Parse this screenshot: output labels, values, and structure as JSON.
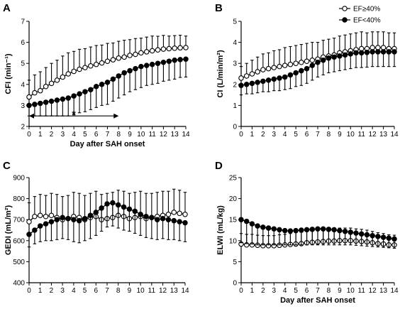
{
  "legend": [
    {
      "label": "EF≥40%",
      "marker": "open-circle"
    },
    {
      "label": "EF<40%",
      "marker": "filled-circle"
    }
  ],
  "colors": {
    "ink": "#000000",
    "open_fill": "#ffffff"
  },
  "chart_data": [
    {
      "panel": "A",
      "type": "line",
      "ylabel": "CFI (min⁻¹)",
      "xlabel": "Day after SAH onset",
      "ylim": [
        2,
        7
      ],
      "yticks": [
        2,
        3,
        4,
        5,
        6,
        7
      ],
      "xlim": [
        0,
        14
      ],
      "xticks": [
        0,
        1,
        2,
        3,
        4,
        5,
        6,
        7,
        8,
        9,
        10,
        11,
        12,
        13,
        14
      ],
      "grid": false,
      "series": [
        {
          "name": "EF≥40%",
          "marker": "open-circle",
          "x": [
            0,
            0.5,
            1,
            1.5,
            2,
            2.5,
            3,
            3.5,
            4,
            4.5,
            5,
            5.5,
            6,
            6.5,
            7,
            7.5,
            8,
            8.5,
            9,
            9.5,
            10,
            10.5,
            11,
            11.5,
            12,
            12.5,
            13,
            13.5,
            14
          ],
          "y": [
            3.4,
            3.6,
            3.7,
            3.9,
            4.05,
            4.2,
            4.35,
            4.5,
            4.62,
            4.72,
            4.8,
            4.88,
            4.95,
            5.02,
            5.1,
            5.17,
            5.25,
            5.3,
            5.38,
            5.43,
            5.5,
            5.55,
            5.6,
            5.64,
            5.68,
            5.7,
            5.72,
            5.74,
            5.75
          ],
          "err": [
            0.8,
            0.85,
            0.9,
            0.9,
            0.95,
            0.95,
            1.0,
            1.0,
            0.95,
            0.95,
            0.9,
            0.9,
            0.9,
            0.85,
            0.85,
            0.8,
            0.8,
            0.8,
            0.75,
            0.75,
            0.7,
            0.7,
            0.7,
            0.65,
            0.65,
            0.6,
            0.6,
            0.6,
            0.55
          ]
        },
        {
          "name": "EF<40%",
          "marker": "filled-circle",
          "x": [
            0,
            0.5,
            1,
            1.5,
            2,
            2.5,
            3,
            3.5,
            4,
            4.5,
            5,
            5.5,
            6,
            6.5,
            7,
            7.5,
            8,
            8.5,
            9,
            9.5,
            10,
            10.5,
            11,
            11.5,
            12,
            12.5,
            13,
            13.5,
            14
          ],
          "y": [
            3.0,
            3.05,
            3.1,
            3.15,
            3.2,
            3.25,
            3.3,
            3.35,
            3.45,
            3.55,
            3.65,
            3.75,
            3.9,
            4.0,
            4.1,
            4.25,
            4.4,
            4.55,
            4.65,
            4.75,
            4.85,
            4.9,
            4.95,
            5.0,
            5.05,
            5.1,
            5.15,
            5.18,
            5.2
          ],
          "err": [
            0.5,
            0.55,
            0.6,
            0.65,
            0.7,
            0.75,
            0.8,
            0.85,
            0.9,
            0.9,
            0.95,
            0.95,
            1.0,
            1.0,
            1.05,
            1.05,
            1.05,
            1.05,
            1.0,
            1.0,
            1.0,
            0.95,
            0.95,
            0.95,
            0.9,
            0.9,
            0.9,
            0.85,
            0.85
          ]
        }
      ],
      "annotations": [
        {
          "type": "double-arrow",
          "x_from": 0,
          "x_to": 8,
          "y": 2.5
        },
        {
          "type": "text",
          "text": "*",
          "x": 4,
          "y": 2.62
        }
      ]
    },
    {
      "panel": "B",
      "type": "line",
      "ylabel": "CI (L/min/m²)",
      "xlabel": "",
      "ylim": [
        0,
        5
      ],
      "yticks": [
        0,
        1,
        2,
        3,
        4,
        5
      ],
      "xlim": [
        0,
        14
      ],
      "xticks": [
        0,
        1,
        2,
        3,
        4,
        5,
        6,
        7,
        8,
        9,
        10,
        11,
        12,
        13,
        14
      ],
      "grid": false,
      "legend_position": "top-right",
      "series": [
        {
          "name": "EF≥40%",
          "marker": "open-circle",
          "x": [
            0,
            0.5,
            1,
            1.5,
            2,
            2.5,
            3,
            3.5,
            4,
            4.5,
            5,
            5.5,
            6,
            6.5,
            7,
            7.5,
            8,
            8.5,
            9,
            9.5,
            10,
            10.5,
            11,
            11.5,
            12,
            12.5,
            13,
            13.5,
            14
          ],
          "y": [
            2.3,
            2.4,
            2.5,
            2.6,
            2.7,
            2.75,
            2.8,
            2.85,
            2.9,
            2.95,
            3.0,
            3.05,
            3.1,
            3.15,
            3.2,
            3.3,
            3.35,
            3.4,
            3.5,
            3.55,
            3.6,
            3.65,
            3.7,
            3.7,
            3.75,
            3.75,
            3.75,
            3.7,
            3.7
          ],
          "err": [
            0.55,
            0.6,
            0.65,
            0.7,
            0.75,
            0.75,
            0.8,
            0.8,
            0.85,
            0.85,
            0.85,
            0.85,
            0.85,
            0.85,
            0.8,
            0.8,
            0.8,
            0.8,
            0.8,
            0.8,
            0.8,
            0.8,
            0.8,
            0.75,
            0.75,
            0.75,
            0.75,
            0.75,
            0.75
          ]
        },
        {
          "name": "EF<40%",
          "marker": "filled-circle",
          "x": [
            0,
            0.5,
            1,
            1.5,
            2,
            2.5,
            3,
            3.5,
            4,
            4.5,
            5,
            5.5,
            6,
            6.5,
            7,
            7.5,
            8,
            8.5,
            9,
            9.5,
            10,
            10.5,
            11,
            11.5,
            12,
            12.5,
            13,
            13.5,
            14
          ],
          "y": [
            1.95,
            2.0,
            2.05,
            2.1,
            2.15,
            2.2,
            2.25,
            2.3,
            2.35,
            2.45,
            2.55,
            2.65,
            2.75,
            2.9,
            3.05,
            3.15,
            3.25,
            3.3,
            3.35,
            3.4,
            3.45,
            3.5,
            3.5,
            3.52,
            3.55,
            3.55,
            3.55,
            3.55,
            3.55
          ],
          "err": [
            0.45,
            0.45,
            0.5,
            0.5,
            0.5,
            0.55,
            0.55,
            0.6,
            0.6,
            0.65,
            0.65,
            0.7,
            0.7,
            0.7,
            0.7,
            0.7,
            0.7,
            0.7,
            0.7,
            0.7,
            0.7,
            0.7,
            0.7,
            0.7,
            0.7,
            0.7,
            0.7,
            0.7,
            0.7
          ]
        }
      ]
    },
    {
      "panel": "C",
      "type": "line",
      "ylabel": "GEDI (mL/m²)",
      "xlabel": "",
      "ylim": [
        400,
        900
      ],
      "yticks": [
        400,
        500,
        600,
        700,
        800,
        900
      ],
      "xlim": [
        0,
        14
      ],
      "xticks": [
        0,
        1,
        2,
        3,
        4,
        5,
        6,
        7,
        8,
        9,
        10,
        11,
        12,
        13,
        14
      ],
      "grid": false,
      "series": [
        {
          "name": "EF≥40%",
          "marker": "open-circle",
          "x": [
            0,
            0.5,
            1,
            1.5,
            2,
            2.5,
            3,
            3.5,
            4,
            4.5,
            5,
            5.5,
            6,
            6.5,
            7,
            7.5,
            8,
            8.5,
            9,
            9.5,
            10,
            10.5,
            11,
            11.5,
            12,
            12.5,
            13,
            13.5,
            14
          ],
          "y": [
            690,
            715,
            720,
            715,
            720,
            710,
            700,
            705,
            715,
            710,
            700,
            710,
            715,
            700,
            705,
            710,
            720,
            715,
            705,
            710,
            715,
            705,
            710,
            715,
            720,
            725,
            735,
            730,
            725
          ],
          "err": [
            90,
            95,
            100,
            100,
            105,
            110,
            110,
            110,
            115,
            115,
            115,
            115,
            120,
            120,
            120,
            120,
            120,
            120,
            120,
            120,
            120,
            120,
            115,
            115,
            115,
            110,
            110,
            110,
            105
          ]
        },
        {
          "name": "EF<40%",
          "marker": "filled-circle",
          "x": [
            0,
            0.5,
            1,
            1.5,
            2,
            2.5,
            3,
            3.5,
            4,
            4.5,
            5,
            5.5,
            6,
            6.5,
            7,
            7.5,
            8,
            8.5,
            9,
            9.5,
            10,
            10.5,
            11,
            11.5,
            12,
            12.5,
            13,
            13.5,
            14
          ],
          "y": [
            630,
            650,
            670,
            680,
            690,
            700,
            710,
            705,
            700,
            695,
            705,
            720,
            735,
            755,
            775,
            780,
            770,
            760,
            750,
            740,
            725,
            715,
            710,
            700,
            705,
            700,
            695,
            690,
            685
          ],
          "err": [
            60,
            65,
            75,
            80,
            90,
            95,
            100,
            100,
            105,
            105,
            105,
            110,
            110,
            110,
            110,
            110,
            110,
            110,
            105,
            105,
            100,
            100,
            100,
            95,
            95,
            95,
            90,
            90,
            90
          ]
        }
      ]
    },
    {
      "panel": "D",
      "type": "line",
      "ylabel": "ELWI (mL/kg)",
      "xlabel": "Day after SAH onset",
      "ylim": [
        0,
        25
      ],
      "yticks": [
        0,
        5,
        10,
        15,
        20,
        25
      ],
      "xlim": [
        0,
        14
      ],
      "xticks": [
        0,
        1,
        2,
        3,
        4,
        5,
        6,
        7,
        8,
        9,
        10,
        11,
        12,
        13,
        14
      ],
      "grid": false,
      "series": [
        {
          "name": "EF≥40%",
          "marker": "open-circle",
          "x": [
            0,
            0.5,
            1,
            1.5,
            2,
            2.5,
            3,
            3.5,
            4,
            4.5,
            5,
            5.5,
            6,
            6.5,
            7,
            7.5,
            8,
            8.5,
            9,
            9.5,
            10,
            10.5,
            11,
            11.5,
            12,
            12.5,
            13,
            13.5,
            14
          ],
          "y": [
            9.2,
            9.0,
            9.0,
            8.9,
            8.8,
            8.8,
            8.8,
            8.9,
            9.0,
            9.1,
            9.2,
            9.3,
            9.5,
            9.6,
            9.7,
            9.8,
            9.9,
            9.9,
            10.0,
            10.0,
            10.0,
            9.9,
            9.8,
            9.7,
            9.5,
            9.3,
            9.2,
            9.0,
            9.0
          ],
          "err": [
            2.5,
            2.5,
            2.5,
            2.4,
            2.4,
            2.4,
            2.4,
            2.5,
            2.5,
            2.6,
            2.7,
            2.7,
            2.8,
            2.8,
            2.9,
            2.9,
            3.0,
            3.0,
            3.0,
            3.0,
            3.0,
            2.9,
            2.9,
            2.8,
            2.7,
            2.6,
            2.5,
            2.4,
            2.3
          ]
        },
        {
          "name": "EF<40%",
          "marker": "filled-circle",
          "x": [
            0,
            0.5,
            1,
            1.5,
            2,
            2.5,
            3,
            3.5,
            4,
            4.5,
            5,
            5.5,
            6,
            6.5,
            7,
            7.5,
            8,
            8.5,
            9,
            9.5,
            10,
            10.5,
            11,
            11.5,
            12,
            12.5,
            13,
            13.5,
            14
          ],
          "y": [
            15.0,
            14.6,
            14.0,
            13.5,
            13.2,
            13.0,
            12.8,
            12.6,
            12.4,
            12.3,
            12.4,
            12.5,
            12.6,
            12.7,
            12.8,
            12.8,
            12.7,
            12.6,
            12.4,
            12.2,
            12.0,
            11.8,
            11.6,
            11.4,
            11.2,
            11.0,
            10.8,
            10.6,
            10.4
          ],
          "err": [
            5.5,
            5.3,
            4.8,
            4.5,
            4.2,
            4.0,
            3.8,
            3.6,
            3.4,
            3.3,
            3.4,
            3.5,
            3.6,
            3.7,
            3.8,
            3.8,
            3.7,
            3.6,
            3.4,
            3.2,
            3.0,
            2.9,
            2.8,
            2.7,
            2.6,
            2.5,
            2.4,
            2.3,
            2.2
          ]
        }
      ]
    }
  ]
}
